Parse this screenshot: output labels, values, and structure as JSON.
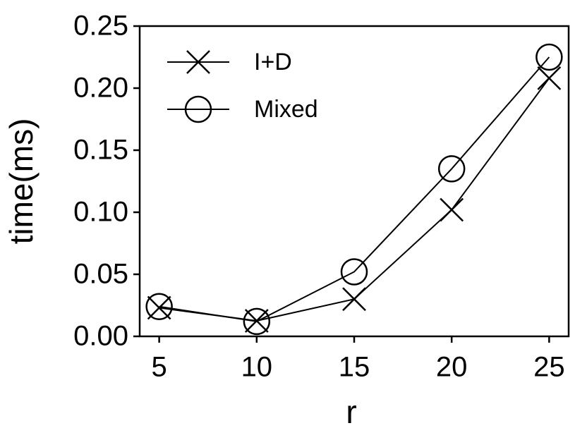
{
  "chart_data": {
    "type": "line",
    "x_label": "r",
    "y_label": "time(ms)",
    "x": [
      5,
      10,
      15,
      20,
      25
    ],
    "series": [
      {
        "name": "I+D",
        "color": "#000000",
        "marker": "x",
        "values": [
          0.023,
          0.0125,
          0.03,
          0.102,
          0.208
        ]
      },
      {
        "name": "Mixed",
        "color": "#000000",
        "marker": "o",
        "values": [
          0.024,
          0.012,
          0.052,
          0.135,
          0.225
        ]
      }
    ],
    "xlim": [
      4,
      26
    ],
    "xticks": [
      5,
      10,
      15,
      20,
      25
    ],
    "ylim": [
      0,
      0.25
    ],
    "yticks": [
      {
        "value": 0,
        "label": "0.00"
      },
      {
        "value": 0.05,
        "label": "0.05"
      },
      {
        "value": 0.1,
        "label": "0.10"
      },
      {
        "value": 0.15,
        "label": "0.15"
      },
      {
        "value": 0.2,
        "label": "0.20"
      },
      {
        "value": 0.25,
        "label": "0.25"
      }
    ],
    "grid": false,
    "legend": "upper left"
  }
}
